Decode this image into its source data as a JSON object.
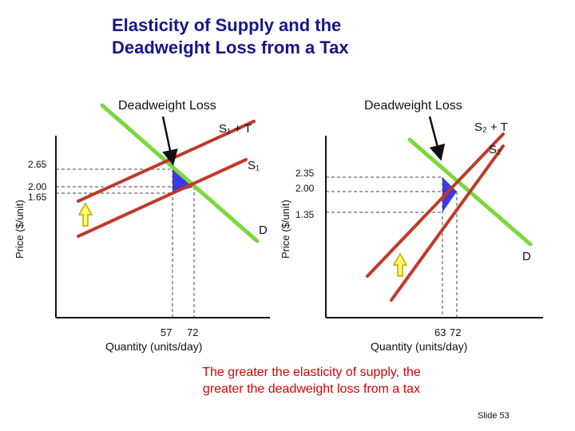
{
  "title": {
    "line1": "Elasticity of Supply and the",
    "line2": "Deadweight Loss from a Tax"
  },
  "colors": {
    "title": "#16168a",
    "demand": "#7ad83c",
    "supply": "#c0392b",
    "deadweight_loss": "#3a3ae8",
    "arrow_fill": "#ffff66",
    "arrow_stroke": "#c8a200",
    "footer_text": "#d80000"
  },
  "left_graph": {
    "dwl_label": "Deadweight Loss",
    "supply_tax_label": "S₁ + T",
    "supply_label": "S₁",
    "demand_label": "D",
    "y_axis_label": "Price ($/unit)",
    "x_axis_label": "Quantity (units/day)",
    "price_ticks": [
      "2.65",
      "2.00",
      "1.65"
    ],
    "quantity_ticks": [
      "57",
      "72"
    ]
  },
  "right_graph": {
    "dwl_label": "Deadweight Loss",
    "supply_tax_label": "S₂ + T",
    "supply_label": "S₂",
    "demand_label": "D",
    "y_axis_label": "Price ($/unit)",
    "x_axis_label": "Quantity (units/day)",
    "price_ticks": [
      "2.35",
      "2.00",
      "1.35"
    ],
    "quantity_ticks": [
      "63",
      "72"
    ]
  },
  "footer": {
    "line1": "The greater the elasticity of supply, the",
    "line2": "greater the deadweight loss from a tax"
  },
  "slide_number": "Slide 53"
}
